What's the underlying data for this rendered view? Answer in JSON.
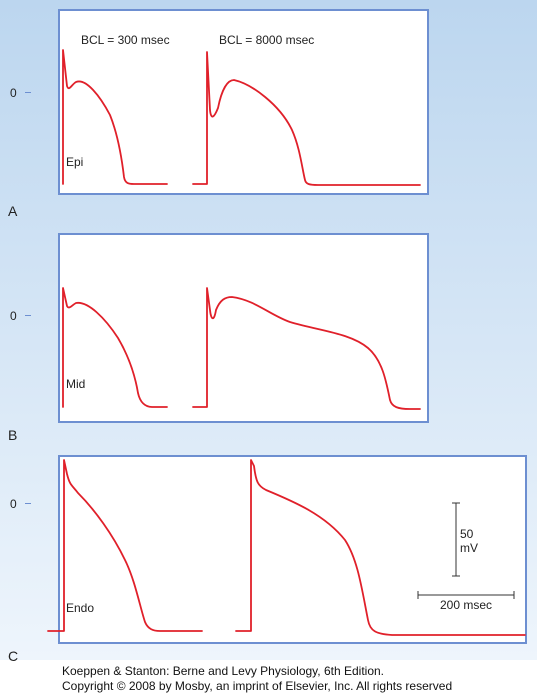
{
  "panels": [
    {
      "letter": "A",
      "region": "Epi",
      "zero_label": "0"
    },
    {
      "letter": "B",
      "region": "Mid",
      "zero_label": "0"
    },
    {
      "letter": "C",
      "region": "Endo",
      "zero_label": "0"
    }
  ],
  "cycle_labels": {
    "short": "BCL = 300 msec",
    "long": "BCL = 8000 msec"
  },
  "scale_bar": {
    "voltage_value": "50",
    "voltage_unit": "mV",
    "time": "200 msec"
  },
  "caption": {
    "line1": "Koeppen & Stanton: Berne and Levy Physiology, 6th Edition.",
    "line2": "Copyright © 2008 by Mosby, an imprint of Elsevier, Inc. All rights reserved"
  },
  "colors": {
    "trace": "#e0202a",
    "frame": "#6d8fd1",
    "background_top": "#bcd6ef",
    "background_bottom": "#eef5fc"
  }
}
